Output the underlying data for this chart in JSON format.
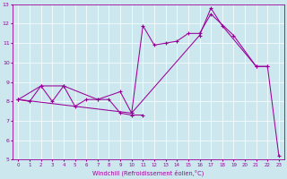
{
  "xlabel": "Windchill (Refroidissement éolien,°C)",
  "bg_color": "#cce8ee",
  "line_color": "#990099",
  "xlim": [
    -0.5,
    23.5
  ],
  "ylim": [
    5,
    13
  ],
  "xticks": [
    0,
    1,
    2,
    3,
    4,
    5,
    6,
    7,
    8,
    9,
    10,
    11,
    12,
    13,
    14,
    15,
    16,
    17,
    18,
    19,
    20,
    21,
    22,
    23
  ],
  "yticks": [
    5,
    6,
    7,
    8,
    9,
    10,
    11,
    12,
    13
  ],
  "line1_x": [
    0,
    1,
    2,
    3,
    4,
    5,
    6,
    7,
    8,
    9,
    10,
    11
  ],
  "line1_y": [
    8.1,
    8.0,
    8.8,
    8.0,
    8.8,
    7.75,
    8.1,
    8.1,
    8.1,
    7.4,
    7.3,
    7.3
  ],
  "line2_x": [
    0,
    2,
    4,
    7,
    9,
    10,
    11,
    12,
    13,
    14,
    15,
    16,
    17,
    19,
    21,
    22
  ],
  "line2_y": [
    8.1,
    8.8,
    8.8,
    8.1,
    8.5,
    7.4,
    11.9,
    10.9,
    11.0,
    11.1,
    11.5,
    11.5,
    12.5,
    11.4,
    9.8,
    9.8
  ],
  "line3_x": [
    0,
    10,
    16,
    17,
    18,
    21,
    22,
    23
  ],
  "line3_y": [
    8.1,
    7.4,
    11.4,
    12.8,
    11.9,
    9.8,
    9.8,
    5.2
  ]
}
